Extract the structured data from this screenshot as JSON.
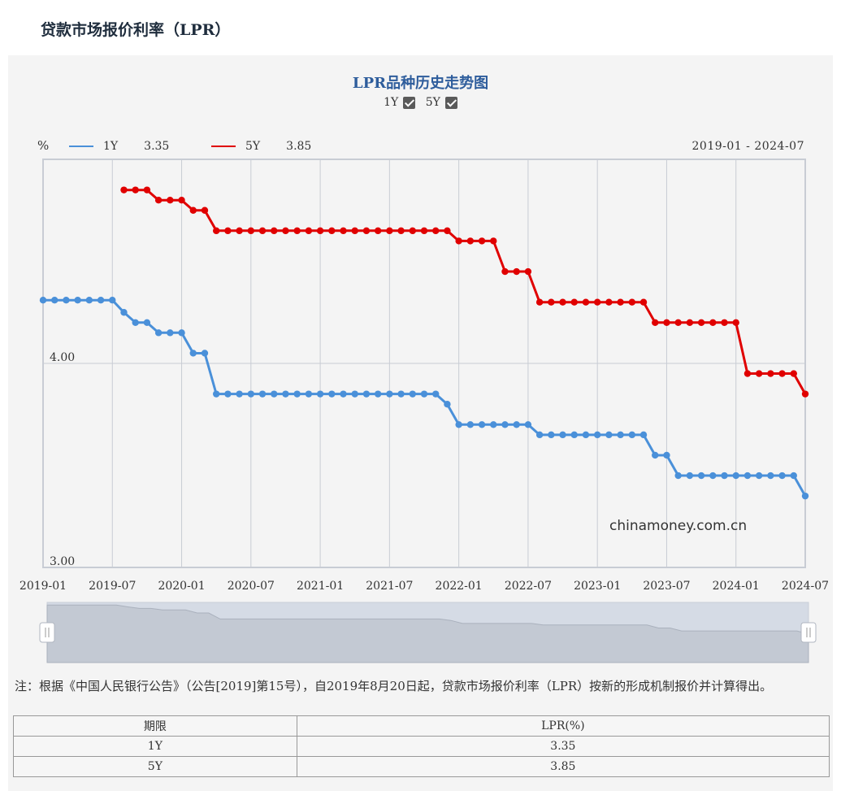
{
  "page": {
    "title": "贷款市场报价利率（LPR）"
  },
  "chart": {
    "title": "LPR品种历史走势图",
    "toggles": [
      {
        "label": "1Y",
        "checked": true
      },
      {
        "label": "5Y",
        "checked": true
      }
    ],
    "unit": "%",
    "legend": [
      {
        "name": "1Y",
        "value": "3.35",
        "color": "#4a90d9"
      },
      {
        "name": "5Y",
        "value": "3.85",
        "color": "#e00000"
      }
    ],
    "range_label": "2019-01 - 2024-07",
    "watermark": "chinamoney.com.cn"
  },
  "chart_data": {
    "type": "line",
    "x_start": "2019-01",
    "x_end": "2024-07",
    "x_ticks": [
      "2019-01",
      "2019-07",
      "2020-01",
      "2020-07",
      "2021-01",
      "2021-07",
      "2022-01",
      "2022-07",
      "2023-01",
      "2023-07",
      "2024-01",
      "2024-07"
    ],
    "y_ticks": [
      "4.00",
      "3.00"
    ],
    "ylim": [
      3.0,
      5.0
    ],
    "grid": true,
    "series": [
      {
        "name": "1Y",
        "color": "#4a90d9",
        "points": [
          [
            "2019-01",
            4.31
          ],
          [
            "2019-02",
            4.31
          ],
          [
            "2019-03",
            4.31
          ],
          [
            "2019-04",
            4.31
          ],
          [
            "2019-05",
            4.31
          ],
          [
            "2019-06",
            4.31
          ],
          [
            "2019-07",
            4.31
          ],
          [
            "2019-08",
            4.25
          ],
          [
            "2019-09",
            4.2
          ],
          [
            "2019-10",
            4.2
          ],
          [
            "2019-11",
            4.15
          ],
          [
            "2019-12",
            4.15
          ],
          [
            "2020-01",
            4.15
          ],
          [
            "2020-02",
            4.05
          ],
          [
            "2020-03",
            4.05
          ],
          [
            "2020-04",
            3.85
          ],
          [
            "2020-05",
            3.85
          ],
          [
            "2020-06",
            3.85
          ],
          [
            "2020-07",
            3.85
          ],
          [
            "2020-08",
            3.85
          ],
          [
            "2020-09",
            3.85
          ],
          [
            "2020-10",
            3.85
          ],
          [
            "2020-11",
            3.85
          ],
          [
            "2020-12",
            3.85
          ],
          [
            "2021-01",
            3.85
          ],
          [
            "2021-02",
            3.85
          ],
          [
            "2021-03",
            3.85
          ],
          [
            "2021-04",
            3.85
          ],
          [
            "2021-05",
            3.85
          ],
          [
            "2021-06",
            3.85
          ],
          [
            "2021-07",
            3.85
          ],
          [
            "2021-08",
            3.85
          ],
          [
            "2021-09",
            3.85
          ],
          [
            "2021-10",
            3.85
          ],
          [
            "2021-11",
            3.85
          ],
          [
            "2021-12",
            3.8
          ],
          [
            "2022-01",
            3.7
          ],
          [
            "2022-02",
            3.7
          ],
          [
            "2022-03",
            3.7
          ],
          [
            "2022-04",
            3.7
          ],
          [
            "2022-05",
            3.7
          ],
          [
            "2022-06",
            3.7
          ],
          [
            "2022-07",
            3.7
          ],
          [
            "2022-08",
            3.65
          ],
          [
            "2022-09",
            3.65
          ],
          [
            "2022-10",
            3.65
          ],
          [
            "2022-11",
            3.65
          ],
          [
            "2022-12",
            3.65
          ],
          [
            "2023-01",
            3.65
          ],
          [
            "2023-02",
            3.65
          ],
          [
            "2023-03",
            3.65
          ],
          [
            "2023-04",
            3.65
          ],
          [
            "2023-05",
            3.65
          ],
          [
            "2023-06",
            3.55
          ],
          [
            "2023-07",
            3.55
          ],
          [
            "2023-08",
            3.45
          ],
          [
            "2023-09",
            3.45
          ],
          [
            "2023-10",
            3.45
          ],
          [
            "2023-11",
            3.45
          ],
          [
            "2023-12",
            3.45
          ],
          [
            "2024-01",
            3.45
          ],
          [
            "2024-02",
            3.45
          ],
          [
            "2024-03",
            3.45
          ],
          [
            "2024-04",
            3.45
          ],
          [
            "2024-05",
            3.45
          ],
          [
            "2024-06",
            3.45
          ],
          [
            "2024-07",
            3.35
          ]
        ]
      },
      {
        "name": "5Y",
        "color": "#e00000",
        "points": [
          [
            "2019-08",
            4.85
          ],
          [
            "2019-09",
            4.85
          ],
          [
            "2019-10",
            4.85
          ],
          [
            "2019-11",
            4.8
          ],
          [
            "2019-12",
            4.8
          ],
          [
            "2020-01",
            4.8
          ],
          [
            "2020-02",
            4.75
          ],
          [
            "2020-03",
            4.75
          ],
          [
            "2020-04",
            4.65
          ],
          [
            "2020-05",
            4.65
          ],
          [
            "2020-06",
            4.65
          ],
          [
            "2020-07",
            4.65
          ],
          [
            "2020-08",
            4.65
          ],
          [
            "2020-09",
            4.65
          ],
          [
            "2020-10",
            4.65
          ],
          [
            "2020-11",
            4.65
          ],
          [
            "2020-12",
            4.65
          ],
          [
            "2021-01",
            4.65
          ],
          [
            "2021-02",
            4.65
          ],
          [
            "2021-03",
            4.65
          ],
          [
            "2021-04",
            4.65
          ],
          [
            "2021-05",
            4.65
          ],
          [
            "2021-06",
            4.65
          ],
          [
            "2021-07",
            4.65
          ],
          [
            "2021-08",
            4.65
          ],
          [
            "2021-09",
            4.65
          ],
          [
            "2021-10",
            4.65
          ],
          [
            "2021-11",
            4.65
          ],
          [
            "2021-12",
            4.65
          ],
          [
            "2022-01",
            4.6
          ],
          [
            "2022-02",
            4.6
          ],
          [
            "2022-03",
            4.6
          ],
          [
            "2022-04",
            4.6
          ],
          [
            "2022-05",
            4.45
          ],
          [
            "2022-06",
            4.45
          ],
          [
            "2022-07",
            4.45
          ],
          [
            "2022-08",
            4.3
          ],
          [
            "2022-09",
            4.3
          ],
          [
            "2022-10",
            4.3
          ],
          [
            "2022-11",
            4.3
          ],
          [
            "2022-12",
            4.3
          ],
          [
            "2023-01",
            4.3
          ],
          [
            "2023-02",
            4.3
          ],
          [
            "2023-03",
            4.3
          ],
          [
            "2023-04",
            4.3
          ],
          [
            "2023-05",
            4.3
          ],
          [
            "2023-06",
            4.2
          ],
          [
            "2023-07",
            4.2
          ],
          [
            "2023-08",
            4.2
          ],
          [
            "2023-09",
            4.2
          ],
          [
            "2023-10",
            4.2
          ],
          [
            "2023-11",
            4.2
          ],
          [
            "2023-12",
            4.2
          ],
          [
            "2024-01",
            4.2
          ],
          [
            "2024-02",
            3.95
          ],
          [
            "2024-03",
            3.95
          ],
          [
            "2024-04",
            3.95
          ],
          [
            "2024-05",
            3.95
          ],
          [
            "2024-06",
            3.95
          ],
          [
            "2024-07",
            3.85
          ]
        ]
      }
    ]
  },
  "note": "注：根据《中国人民银行公告》（公告[2019]第15号），自2019年8月20日起，贷款市场报价利率（LPR）按新的形成机制报价并计算得出。",
  "table": {
    "headers": [
      "期限",
      "LPR(%)"
    ],
    "rows": [
      [
        "1Y",
        "3.35"
      ],
      [
        "5Y",
        "3.85"
      ]
    ]
  }
}
